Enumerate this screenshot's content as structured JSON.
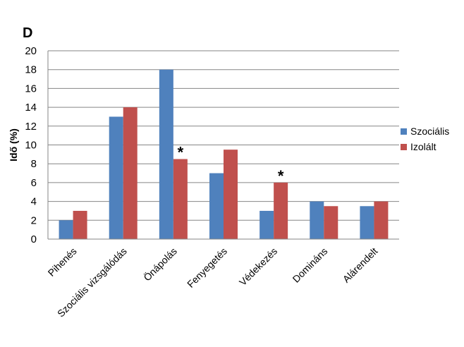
{
  "panel_label": "D",
  "chart_data": {
    "type": "bar",
    "ylabel": "Idő (%)",
    "ylim": [
      0,
      20
    ],
    "yticks": [
      0,
      2,
      4,
      6,
      8,
      10,
      12,
      14,
      16,
      18,
      20
    ],
    "grid": true,
    "legend_position": "right",
    "categories": [
      "Pihenés",
      "Szociális vizsgálódás",
      "Önápolás",
      "Fenyegetés",
      "Védekezés",
      "Domináns",
      "Alárendelt"
    ],
    "series": [
      {
        "name": "Szociális",
        "color": "#4F81BD",
        "values": [
          2,
          13,
          18,
          7,
          3,
          4,
          3.5
        ]
      },
      {
        "name": "Izolált",
        "color": "#C0504D",
        "values": [
          3,
          14,
          8.5,
          9.5,
          6,
          3.5,
          4
        ]
      }
    ],
    "annotations": [
      {
        "text": "*",
        "category_index": 2,
        "series_index": 1
      },
      {
        "text": "*",
        "category_index": 4,
        "series_index": 1
      }
    ]
  }
}
